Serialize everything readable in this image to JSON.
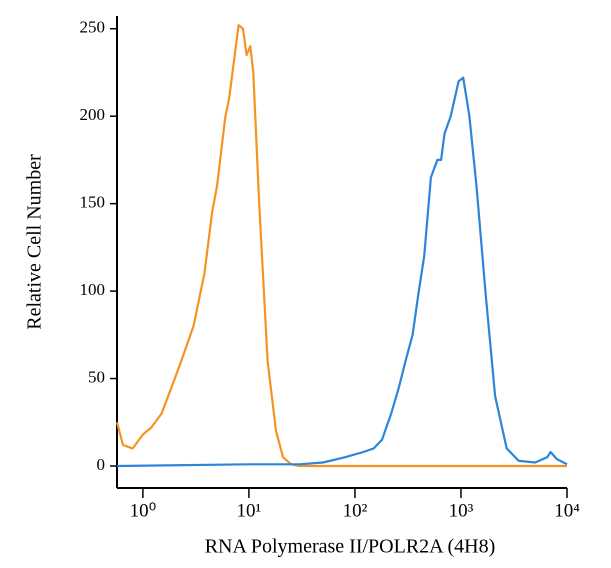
{
  "chart_data": {
    "type": "line",
    "x_label": "RNA Polymerase II/POLR2A (4H8)",
    "y_label": "Relative Cell Number",
    "xscale": "log",
    "xlim": [
      0.57,
      10000
    ],
    "ylim": [
      0,
      255
    ],
    "xticks": [
      {
        "value": 1,
        "label": "10⁰"
      },
      {
        "value": 10,
        "label": "10¹"
      },
      {
        "value": 100,
        "label": "10²"
      },
      {
        "value": 1000,
        "label": "10³"
      },
      {
        "value": 10000,
        "label": "10⁴"
      }
    ],
    "yticks": [
      0,
      50,
      100,
      150,
      200,
      250
    ],
    "series": [
      {
        "color": "#f39422",
        "x": [
          0.57,
          0.65,
          0.8,
          1.0,
          1.2,
          1.5,
          2.0,
          2.3,
          3,
          3.8,
          4.5,
          5,
          6,
          6.5,
          8,
          8.8,
          9.5,
          10.3,
          11,
          12.5,
          15,
          18,
          21,
          25,
          30,
          10000
        ],
        "values": [
          25,
          12,
          10,
          18,
          22,
          30,
          50,
          60,
          80,
          110,
          145,
          160,
          200,
          210,
          252,
          250,
          235,
          240,
          225,
          150,
          60,
          20,
          5,
          1,
          0,
          0
        ]
      },
      {
        "color": "#2b86d9",
        "x": [
          0.57,
          10,
          30,
          50,
          80,
          120,
          150,
          180,
          220,
          260,
          300,
          350,
          400,
          450,
          520,
          600,
          650,
          700,
          800,
          950,
          1050,
          1200,
          1400,
          1700,
          2100,
          2700,
          3500,
          5000,
          6500,
          7000,
          8000,
          10000
        ],
        "values": [
          0,
          1,
          1,
          2,
          5,
          8,
          10,
          15,
          30,
          45,
          60,
          75,
          100,
          120,
          165,
          175,
          175,
          190,
          200,
          220,
          222,
          200,
          160,
          100,
          40,
          10,
          3,
          2,
          5,
          8,
          4,
          1
        ]
      }
    ]
  }
}
